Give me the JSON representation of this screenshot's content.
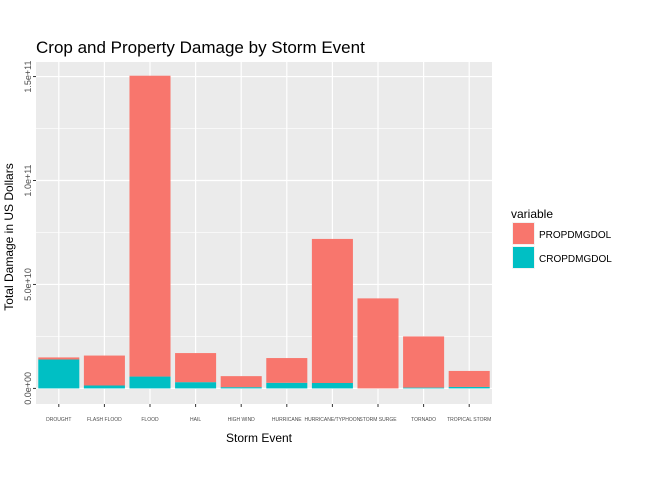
{
  "chart_data": {
    "type": "bar",
    "stacked": true,
    "title": "Crop and Property Damage by Storm Event",
    "xlabel": "Storm Event",
    "ylabel": "Total Damage in US Dollars",
    "categories": [
      "DROUGHT",
      "FLASH FLOOD",
      "FLOOD",
      "HAIL",
      "HIGH WIND",
      "HURRICANE",
      "HURRICANE/TYPHOON",
      "STORM SURGE",
      "TORNADO",
      "TROPICAL STORM"
    ],
    "series": [
      {
        "name": "PROPDMGDOL",
        "color": "#F8766D",
        "values": [
          1000000000,
          14400000000,
          144700000000,
          14000000000,
          5300000000,
          11900000000,
          69300000000,
          43300000000,
          24600000000,
          7700000000
        ]
      },
      {
        "name": "CROPDMGDOL",
        "color": "#00BFC4",
        "values": [
          13900000000,
          1400000000,
          5700000000,
          3000000000,
          600000000,
          2700000000,
          2600000000,
          0,
          400000000,
          700000000
        ]
      }
    ],
    "y_ticks": [
      0,
      50000000000,
      100000000000,
      150000000000
    ],
    "y_tick_labels": [
      "0.0e+00",
      "5.0e+10",
      "1.0e+11",
      "1.5e+11"
    ],
    "ylim": [
      -7500000000,
      157000000000
    ],
    "grid": true,
    "legend": {
      "title": "variable",
      "position": "right"
    },
    "panel_color": "#EBEBEB"
  }
}
